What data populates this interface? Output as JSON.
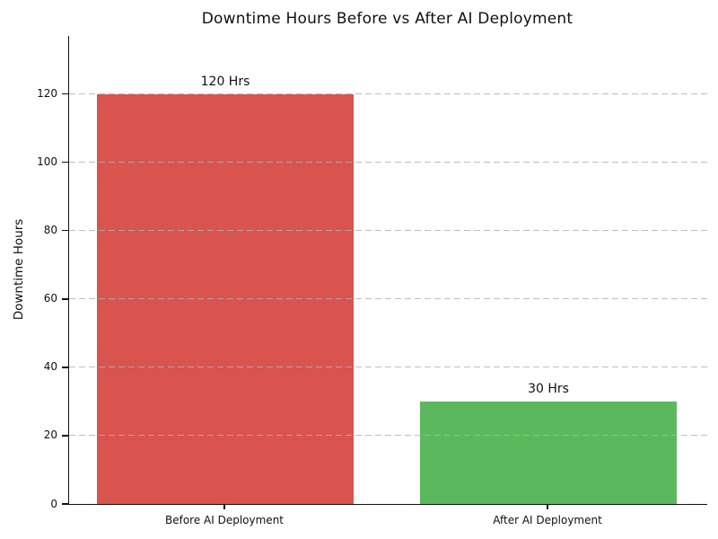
{
  "chart_data": {
    "type": "bar",
    "title": "Downtime Hours Before vs After AI Deployment",
    "xlabel": "",
    "ylabel": "Downtime Hours",
    "categories": [
      "Before AI Deployment",
      "After AI Deployment"
    ],
    "values": [
      120,
      30
    ],
    "bar_labels": [
      "120 Hrs",
      "30 Hrs"
    ],
    "bar_colors": [
      "#d9534f",
      "#5cb85c"
    ],
    "ylim": [
      0,
      137
    ],
    "yticks": [
      0,
      20,
      40,
      60,
      80,
      100,
      120
    ],
    "grid": {
      "axis": "y",
      "style": "dashed",
      "color": "#b2b2b2",
      "drawn_over_bars": true
    },
    "legend": "none"
  },
  "colors": {
    "background": "#ffffff",
    "title_text": "#111111",
    "axis_text": "#111111",
    "spine": "#111111",
    "bar_before": "#d9534f",
    "bar_after": "#5cb85c"
  }
}
